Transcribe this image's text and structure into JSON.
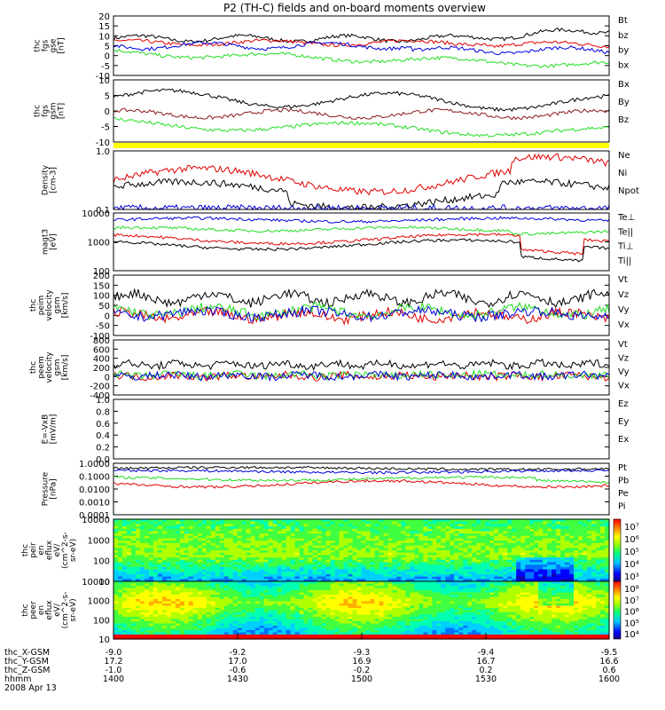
{
  "title": "P2 (TH-C) fields and on-board moments overview",
  "colors": {
    "black": "#000000",
    "red": "#e00000",
    "green": "#22dd22",
    "blue": "#0000dd",
    "darkred": "#8b1a1a",
    "yellow": "#ffff00"
  },
  "chart_data": [
    {
      "type": "line",
      "panel": "fgs-gse",
      "ylabel_lines": [
        "thc",
        "fgs",
        "gse",
        "[nT]"
      ],
      "ylim": [
        -10,
        20
      ],
      "y_ticks": [
        "20",
        "15",
        "10",
        "5",
        "0",
        "-5",
        "-10"
      ],
      "legend": [
        {
          "label": "Bt",
          "color": "black"
        },
        {
          "label": "bz",
          "color": "red"
        },
        {
          "label": "by",
          "color": "green"
        },
        {
          "label": "bx",
          "color": "blue"
        }
      ]
    },
    {
      "type": "line",
      "panel": "fgs-gsm",
      "ylabel_lines": [
        "thc",
        "fgs",
        "gsm",
        "[nT]"
      ],
      "ylim": [
        -15,
        10
      ],
      "y_ticks": [
        "10",
        "5",
        "0",
        "-5",
        "-10"
      ],
      "legend": [
        {
          "label": "Bx",
          "color": "black"
        },
        {
          "label": "By",
          "color": "darkred"
        },
        {
          "label": "Bz",
          "color": "green"
        }
      ]
    },
    {
      "type": "line",
      "panel": "density",
      "ylabel_lines": [
        "Density",
        "[cm-3]"
      ],
      "scale": "log",
      "ylim": [
        0.1,
        1.0
      ],
      "y_ticks": [
        "1.0",
        "0.1"
      ],
      "legend": [
        {
          "label": "Ne",
          "color": "red"
        },
        {
          "label": "Ni",
          "color": "black"
        },
        {
          "label": "Npot",
          "color": "blue"
        }
      ]
    },
    {
      "type": "line",
      "panel": "temperature",
      "ylabel_lines": [
        "magt3",
        "[eV]"
      ],
      "scale": "log",
      "ylim": [
        100,
        10000
      ],
      "y_ticks": [
        "10000",
        "1000",
        "100"
      ],
      "legend": [
        {
          "label": "Te⊥",
          "color": "red"
        },
        {
          "label": "Te||",
          "color": "black"
        },
        {
          "label": "Ti⊥",
          "color": "darkred"
        },
        {
          "label": "Ti||",
          "color": "green"
        }
      ]
    },
    {
      "type": "line",
      "panel": "peim-velocity",
      "ylabel_lines": [
        "thc",
        "peim",
        "velocity",
        "gsm",
        "[km/s]"
      ],
      "ylim": [
        -100,
        200
      ],
      "y_ticks": [
        "200",
        "150",
        "100",
        "50",
        "0",
        "-50",
        "-100"
      ],
      "legend": [
        {
          "label": "Vt",
          "color": "black"
        },
        {
          "label": "Vz",
          "color": "red"
        },
        {
          "label": "Vy",
          "color": "green"
        },
        {
          "label": "Vx",
          "color": "blue"
        }
      ]
    },
    {
      "type": "line",
      "panel": "peem-velocity",
      "ylabel_lines": [
        "thc",
        "peem",
        "velocity",
        "gsm",
        "[km/s]"
      ],
      "ylim": [
        -400,
        800
      ],
      "y_ticks": [
        "800",
        "600",
        "400",
        "200",
        "0",
        "-200",
        "-400"
      ],
      "legend": [
        {
          "label": "Vt",
          "color": "black"
        },
        {
          "label": "Vz",
          "color": "red"
        },
        {
          "label": "Vy",
          "color": "green"
        },
        {
          "label": "Vx",
          "color": "blue"
        }
      ]
    },
    {
      "type": "line",
      "panel": "efield",
      "ylabel_lines": [
        "E=-VxB",
        "[mV/m]"
      ],
      "ylim": [
        0.0,
        1.0
      ],
      "y_ticks": [
        "1.0",
        "0.8",
        "0.6",
        "0.4",
        "0.2",
        "0.0"
      ],
      "legend": [
        {
          "label": "Ez",
          "color": "red"
        },
        {
          "label": "Ey",
          "color": "green"
        },
        {
          "label": "Ex",
          "color": "blue"
        }
      ]
    },
    {
      "type": "line",
      "panel": "pressure",
      "ylabel_lines": [
        "Pressure",
        "[nPa]"
      ],
      "scale": "log",
      "ylim": [
        0.0001,
        1.0
      ],
      "y_ticks": [
        "1.0000",
        "0.1000",
        "0.0100",
        "0.0010",
        "0.0001"
      ],
      "legend": [
        {
          "label": "Pt",
          "color": "black"
        },
        {
          "label": "Pb",
          "color": "red"
        },
        {
          "label": "Pe",
          "color": "green"
        },
        {
          "label": "Pi",
          "color": "blue"
        }
      ]
    },
    {
      "type": "heatmap",
      "panel": "peir-en-eflux",
      "ylabel_lines": [
        "thc",
        "peir",
        "en",
        "eflux",
        "eV/",
        "(cm^2-s-",
        "sr-eV)"
      ],
      "scale": "log",
      "ylim": [
        10,
        10000
      ],
      "y_ticks": [
        "10000",
        "1000",
        "100",
        "10"
      ],
      "colorbar_ticks": [
        "10⁷",
        "10⁶",
        "10⁵",
        "10⁴",
        "10³"
      ]
    },
    {
      "type": "heatmap",
      "panel": "peer-en-eflux",
      "ylabel_lines": [
        "thc",
        "peer",
        "en",
        "eflux",
        "eV/",
        "(cm^2-s-",
        "sr-eV)"
      ],
      "scale": "log",
      "ylim": [
        10,
        10000
      ],
      "y_ticks": [
        "10000",
        "1000",
        "100",
        "10"
      ],
      "colorbar_ticks": [
        "10⁸",
        "10⁷",
        "10⁶",
        "10⁵",
        "10⁴"
      ]
    }
  ],
  "x_axis": {
    "row_labels": [
      "thc_X-GSM",
      "thc_Y-GSM",
      "thc_Z-GSM",
      "hhmm",
      "2008 Apr 13"
    ],
    "columns": [
      [
        "-9.0",
        "17.2",
        "-1.0",
        "1400"
      ],
      [
        "-9.2",
        "17.0",
        "-0.6",
        "1430"
      ],
      [
        "-9.3",
        "16.9",
        "-0.2",
        "1500"
      ],
      [
        "-9.4",
        "16.7",
        "0.2",
        "1530"
      ],
      [
        "-9.5",
        "16.6",
        "0.6",
        "1600"
      ]
    ]
  }
}
